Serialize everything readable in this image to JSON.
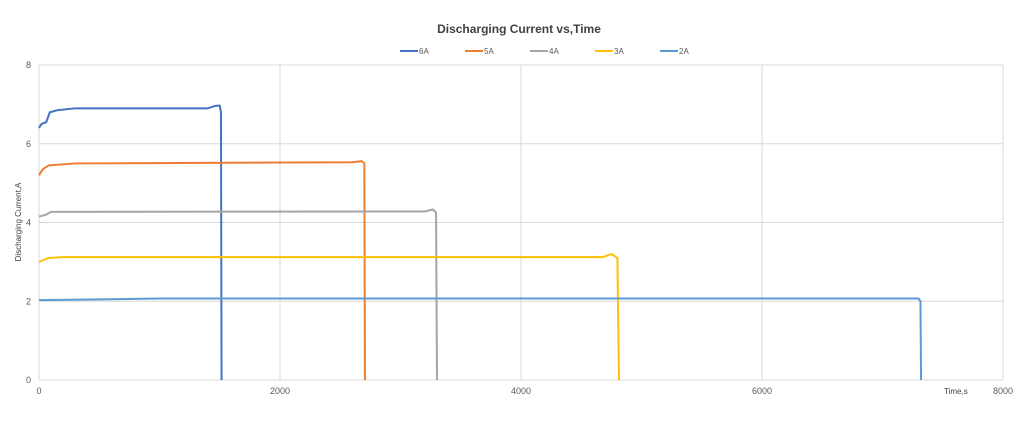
{
  "chart_data": {
    "type": "line",
    "title": "Discharging Current vs,Time",
    "xlabel": "Time,s",
    "ylabel": "Discharging Current,A",
    "xlim": [
      0,
      8000
    ],
    "ylim": [
      0,
      8
    ],
    "xticks": [
      "0",
      "2000",
      "4000",
      "6000",
      "8000"
    ],
    "yticks": [
      "0",
      "2",
      "4",
      "6",
      "8"
    ],
    "grid": true,
    "legend_position": "top",
    "series": [
      {
        "name": "6A",
        "color": "#4472C4",
        "points": [
          [
            0,
            6.4
          ],
          [
            20,
            6.5
          ],
          [
            60,
            6.55
          ],
          [
            90,
            6.8
          ],
          [
            150,
            6.85
          ],
          [
            300,
            6.9
          ],
          [
            1400,
            6.9
          ],
          [
            1460,
            6.96
          ],
          [
            1500,
            6.97
          ],
          [
            1510,
            6.8
          ],
          [
            1515,
            0
          ]
        ]
      },
      {
        "name": "5A",
        "color": "#ED7D31",
        "points": [
          [
            0,
            5.2
          ],
          [
            30,
            5.35
          ],
          [
            80,
            5.45
          ],
          [
            300,
            5.5
          ],
          [
            2600,
            5.53
          ],
          [
            2680,
            5.56
          ],
          [
            2700,
            5.5
          ],
          [
            2705,
            0
          ]
        ]
      },
      {
        "name": "4A",
        "color": "#A5A5A5",
        "points": [
          [
            0,
            4.15
          ],
          [
            60,
            4.2
          ],
          [
            100,
            4.27
          ],
          [
            3200,
            4.28
          ],
          [
            3270,
            4.33
          ],
          [
            3295,
            4.25
          ],
          [
            3303,
            0
          ]
        ]
      },
      {
        "name": "3A",
        "color": "#FFC000",
        "points": [
          [
            0,
            3.0
          ],
          [
            80,
            3.1
          ],
          [
            200,
            3.12
          ],
          [
            4680,
            3.12
          ],
          [
            4750,
            3.2
          ],
          [
            4800,
            3.1
          ],
          [
            4813,
            0
          ]
        ]
      },
      {
        "name": "2A",
        "color": "#5B9BD5",
        "points": [
          [
            0,
            2.03
          ],
          [
            600,
            2.05
          ],
          [
            1000,
            2.07
          ],
          [
            7300,
            2.07
          ],
          [
            7315,
            2.0
          ],
          [
            7320,
            0
          ]
        ]
      }
    ]
  }
}
